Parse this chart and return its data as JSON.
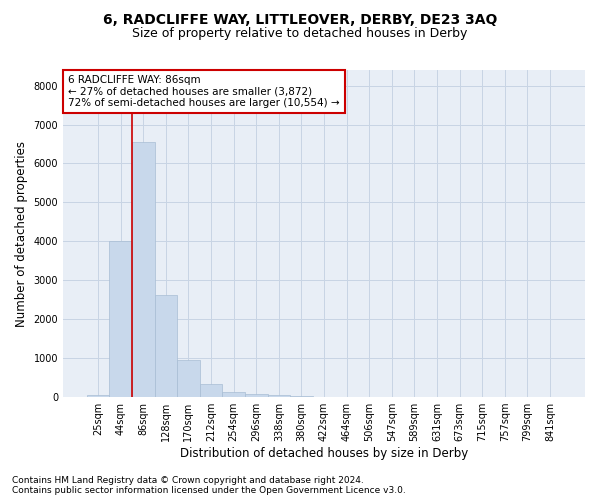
{
  "title": "6, RADCLIFFE WAY, LITTLEOVER, DERBY, DE23 3AQ",
  "subtitle": "Size of property relative to detached houses in Derby",
  "xlabel": "Distribution of detached houses by size in Derby",
  "ylabel": "Number of detached properties",
  "bin_labels": [
    "25sqm",
    "44sqm",
    "86sqm",
    "128sqm",
    "170sqm",
    "212sqm",
    "254sqm",
    "296sqm",
    "338sqm",
    "380sqm",
    "422sqm",
    "464sqm",
    "506sqm",
    "547sqm",
    "589sqm",
    "631sqm",
    "673sqm",
    "715sqm",
    "757sqm",
    "799sqm",
    "841sqm"
  ],
  "bar_values": [
    55,
    4000,
    6550,
    2620,
    940,
    330,
    140,
    70,
    55,
    40,
    10,
    2,
    0,
    0,
    0,
    0,
    0,
    0,
    0,
    0,
    0
  ],
  "bar_color": "#c8d8eb",
  "bar_edge_color": "#a8bdd4",
  "ylim": [
    0,
    8400
  ],
  "yticks": [
    0,
    1000,
    2000,
    3000,
    4000,
    5000,
    6000,
    7000,
    8000
  ],
  "red_line_index": 2,
  "annotation_line1": "6 RADCLIFFE WAY: 86sqm",
  "annotation_line2": "← 27% of detached houses are smaller (3,872)",
  "annotation_line3": "72% of semi-detached houses are larger (10,554) →",
  "annotation_box_color": "#ffffff",
  "annotation_border_color": "#cc0000",
  "footer_line1": "Contains HM Land Registry data © Crown copyright and database right 2024.",
  "footer_line2": "Contains public sector information licensed under the Open Government Licence v3.0.",
  "background_color": "#ffffff",
  "plot_bg_color": "#e8eef6",
  "grid_color": "#c8d4e4",
  "title_fontsize": 10,
  "subtitle_fontsize": 9,
  "axis_label_fontsize": 8.5,
  "tick_fontsize": 7,
  "annotation_fontsize": 7.5,
  "footer_fontsize": 6.5
}
